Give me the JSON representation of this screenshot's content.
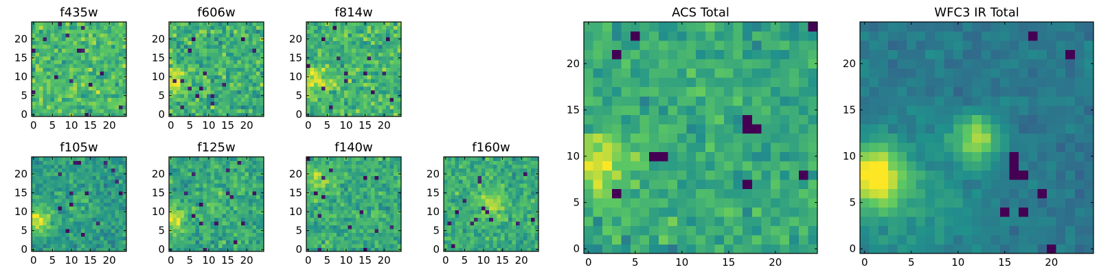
{
  "figure": {
    "colormap": "viridis",
    "colormap_stops": [
      "#440154",
      "#3b528b",
      "#21918c",
      "#5ec962",
      "#fde725"
    ],
    "frame_color": "#000000",
    "background": "#ffffff"
  },
  "chart_data": [
    {
      "type": "heatmap",
      "title": "f435w",
      "xticks": [
        "0",
        "5",
        "10",
        "15",
        "20"
      ],
      "yticks": [
        "0",
        "5",
        "10",
        "15",
        "20"
      ],
      "xlim": [
        -0.5,
        24.5
      ],
      "ylim": [
        -0.5,
        24.5
      ],
      "grid_size": 25,
      "value_range": [
        0,
        1
      ],
      "mean_level": 0.68,
      "noise": 0.16,
      "seed": 11,
      "blobs": []
    },
    {
      "type": "heatmap",
      "title": "f606w",
      "xticks": [
        "0",
        "5",
        "10",
        "15",
        "20"
      ],
      "yticks": [
        "0",
        "5",
        "10",
        "15",
        "20"
      ],
      "xlim": [
        -0.5,
        24.5
      ],
      "ylim": [
        -0.5,
        24.5
      ],
      "grid_size": 25,
      "value_range": [
        0,
        1
      ],
      "mean_level": 0.64,
      "noise": 0.17,
      "seed": 23,
      "blobs": [
        {
          "x": 1,
          "y": 9,
          "amp": 0.3,
          "sigma": 2.5
        }
      ]
    },
    {
      "type": "heatmap",
      "title": "f814w",
      "xticks": [
        "0",
        "5",
        "10",
        "15",
        "20"
      ],
      "yticks": [
        "0",
        "5",
        "10",
        "15",
        "20"
      ],
      "xlim": [
        -0.5,
        24.5
      ],
      "ylim": [
        -0.5,
        24.5
      ],
      "grid_size": 25,
      "value_range": [
        0,
        1
      ],
      "mean_level": 0.66,
      "noise": 0.16,
      "seed": 37,
      "blobs": [
        {
          "x": 2,
          "y": 9,
          "amp": 0.25,
          "sigma": 2.5
        }
      ]
    },
    {
      "type": "heatmap",
      "title": "f105w",
      "xticks": [
        "0",
        "5",
        "10",
        "15",
        "20"
      ],
      "yticks": [
        "0",
        "5",
        "10",
        "15",
        "20"
      ],
      "xlim": [
        -0.5,
        24.5
      ],
      "ylim": [
        -0.5,
        24.5
      ],
      "grid_size": 25,
      "value_range": [
        0,
        1
      ],
      "mean_level": 0.55,
      "noise": 0.12,
      "seed": 41,
      "blobs": [
        {
          "x": 1,
          "y": 8,
          "amp": 0.4,
          "sigma": 2.5
        },
        {
          "x": 12,
          "y": 12,
          "amp": 0.12,
          "sigma": 2
        }
      ]
    },
    {
      "type": "heatmap",
      "title": "f125w",
      "xticks": [
        "0",
        "5",
        "10",
        "15",
        "20"
      ],
      "yticks": [
        "0",
        "5",
        "10",
        "15",
        "20"
      ],
      "xlim": [
        -0.5,
        24.5
      ],
      "ylim": [
        -0.5,
        24.5
      ],
      "grid_size": 25,
      "value_range": [
        0,
        1
      ],
      "mean_level": 0.6,
      "noise": 0.14,
      "seed": 53,
      "blobs": [
        {
          "x": 1,
          "y": 8,
          "amp": 0.35,
          "sigma": 2.5
        },
        {
          "x": 12,
          "y": 12,
          "amp": 0.15,
          "sigma": 2
        }
      ]
    },
    {
      "type": "heatmap",
      "title": "f140w",
      "xticks": [
        "0",
        "5",
        "10",
        "15",
        "20"
      ],
      "yticks": [
        "0",
        "5",
        "10",
        "15",
        "20"
      ],
      "xlim": [
        -0.5,
        24.5
      ],
      "ylim": [
        -0.5,
        24.5
      ],
      "grid_size": 25,
      "value_range": [
        0,
        1
      ],
      "mean_level": 0.62,
      "noise": 0.13,
      "seed": 67,
      "blobs": [
        {
          "x": 3,
          "y": 18,
          "amp": 0.2,
          "sigma": 3
        }
      ]
    },
    {
      "type": "heatmap",
      "title": "f160w",
      "xticks": [
        "0",
        "5",
        "10",
        "15",
        "20"
      ],
      "yticks": [
        "0",
        "5",
        "10",
        "15",
        "20"
      ],
      "xlim": [
        -0.5,
        24.5
      ],
      "ylim": [
        -0.5,
        24.5
      ],
      "grid_size": 25,
      "value_range": [
        0,
        1
      ],
      "mean_level": 0.62,
      "noise": 0.13,
      "seed": 79,
      "blobs": [
        {
          "x": 12,
          "y": 12,
          "amp": 0.25,
          "sigma": 2.5
        }
      ]
    },
    {
      "type": "heatmap",
      "title": "ACS Total",
      "xticks": [
        "0",
        "5",
        "10",
        "15",
        "20"
      ],
      "yticks": [
        "0",
        "5",
        "10",
        "15",
        "20"
      ],
      "xlim": [
        -0.5,
        24.5
      ],
      "ylim": [
        -0.5,
        24.5
      ],
      "grid_size": 25,
      "value_range": [
        0,
        1
      ],
      "mean_level": 0.6,
      "noise": 0.12,
      "seed": 97,
      "blobs": [
        {
          "x": 1,
          "y": 9,
          "amp": 0.35,
          "sigma": 2.5
        }
      ],
      "dark_cells": [
        [
          7,
          10
        ],
        [
          8,
          10
        ],
        [
          3,
          21
        ],
        [
          17,
          13
        ],
        [
          18,
          13
        ],
        [
          17,
          14
        ],
        [
          24,
          24
        ],
        [
          5,
          23
        ],
        [
          23,
          8
        ],
        [
          17,
          7
        ],
        [
          3,
          6
        ]
      ]
    },
    {
      "type": "heatmap",
      "title": "WFC3 IR Total",
      "xticks": [
        "0",
        "5",
        "10",
        "15",
        "20"
      ],
      "yticks": [
        "0",
        "5",
        "10",
        "15",
        "20"
      ],
      "xlim": [
        -0.5,
        24.5
      ],
      "ylim": [
        -0.5,
        24.5
      ],
      "grid_size": 25,
      "value_range": [
        0,
        1
      ],
      "mean_level": 0.4,
      "noise": 0.06,
      "seed": 131,
      "blobs": [
        {
          "x": 1,
          "y": 8,
          "amp": 0.58,
          "sigma": 2.3
        },
        {
          "x": 12,
          "y": 12,
          "amp": 0.45,
          "sigma": 1.7
        },
        {
          "x": 5,
          "y": 5,
          "amp": 0.15,
          "sigma": 5
        }
      ],
      "dark_cells": [
        [
          16,
          8
        ],
        [
          16,
          9
        ],
        [
          17,
          8
        ],
        [
          16,
          10
        ],
        [
          18,
          23
        ],
        [
          22,
          21
        ],
        [
          20,
          0
        ],
        [
          15,
          4
        ],
        [
          17,
          4
        ],
        [
          19,
          6
        ]
      ]
    }
  ]
}
